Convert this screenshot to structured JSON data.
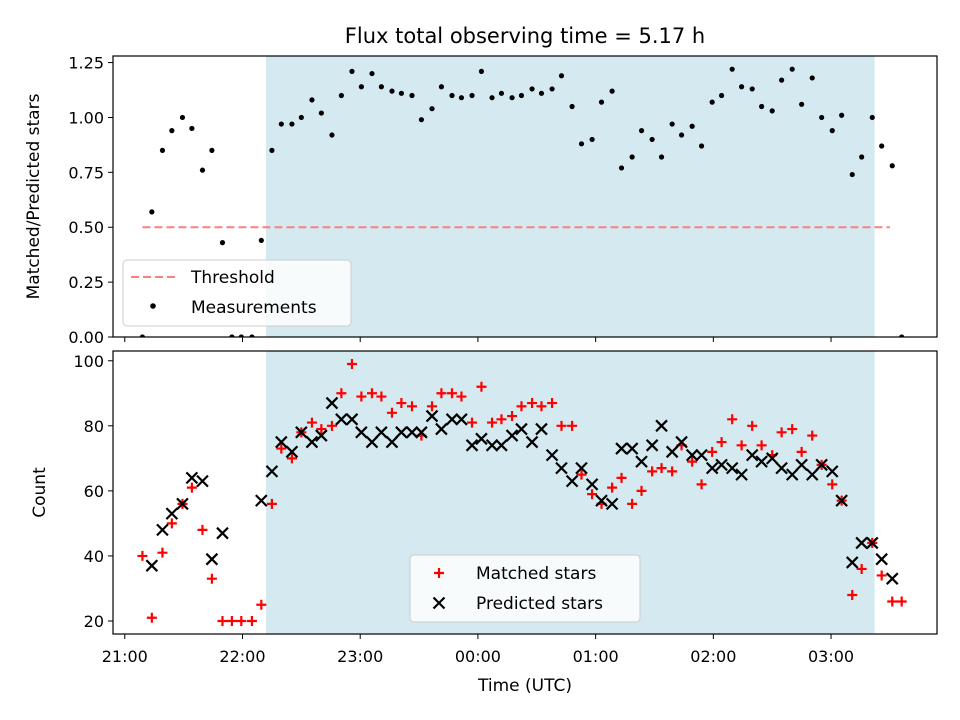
{
  "title": "Flux total observing time = 5.17 h",
  "xlabel": "Time (UTC)",
  "colors": {
    "observing_band": "#d4eaf0",
    "threshold": "#ff7f7f",
    "measurements": "#000000",
    "matched": "#ff0000",
    "predicted": "#000000"
  },
  "chart_data": [
    {
      "type": "scatter",
      "ylabel": "Matched/Predicted stars",
      "ylim": [
        0,
        1.28
      ],
      "yticks": [
        "0.00",
        "0.25",
        "0.50",
        "0.75",
        "1.00",
        "1.25"
      ],
      "xlim": [
        -0.1,
        6.9
      ],
      "xticks": [
        "21:00",
        "22:00",
        "23:00",
        "00:00",
        "01:00",
        "02:00",
        "03:00"
      ],
      "observing_band": {
        "start": 1.2,
        "end": 6.37
      },
      "threshold": {
        "name": "Threshold",
        "value": 0.5,
        "x_start": 0.15,
        "x_end": 6.5
      },
      "legend": {
        "position": "lower-left",
        "entries": [
          "Threshold",
          "Measurements"
        ]
      },
      "series": [
        {
          "name": "Measurements",
          "points": [
            [
              0.15,
              0.0
            ],
            [
              0.23,
              0.57
            ],
            [
              0.32,
              0.85
            ],
            [
              0.4,
              0.94
            ],
            [
              0.49,
              1.0
            ],
            [
              0.57,
              0.95
            ],
            [
              0.66,
              0.76
            ],
            [
              0.74,
              0.85
            ],
            [
              0.83,
              0.43
            ],
            [
              0.91,
              0.0
            ],
            [
              0.99,
              0.0
            ],
            [
              1.08,
              0.0
            ],
            [
              1.16,
              0.44
            ],
            [
              1.25,
              0.85
            ],
            [
              1.33,
              0.97
            ],
            [
              1.42,
              0.97
            ],
            [
              1.5,
              1.0
            ],
            [
              1.59,
              1.08
            ],
            [
              1.67,
              1.02
            ],
            [
              1.76,
              0.92
            ],
            [
              1.84,
              1.1
            ],
            [
              1.93,
              1.21
            ],
            [
              2.01,
              1.14
            ],
            [
              2.1,
              1.2
            ],
            [
              2.18,
              1.14
            ],
            [
              2.27,
              1.12
            ],
            [
              2.35,
              1.11
            ],
            [
              2.44,
              1.1
            ],
            [
              2.52,
              0.99
            ],
            [
              2.61,
              1.04
            ],
            [
              2.69,
              1.14
            ],
            [
              2.78,
              1.1
            ],
            [
              2.86,
              1.09
            ],
            [
              2.95,
              1.1
            ],
            [
              3.03,
              1.21
            ],
            [
              3.12,
              1.09
            ],
            [
              3.2,
              1.11
            ],
            [
              3.29,
              1.09
            ],
            [
              3.37,
              1.1
            ],
            [
              3.46,
              1.13
            ],
            [
              3.54,
              1.11
            ],
            [
              3.63,
              1.13
            ],
            [
              3.71,
              1.19
            ],
            [
              3.8,
              1.05
            ],
            [
              3.88,
              0.88
            ],
            [
              3.97,
              0.9
            ],
            [
              4.05,
              1.07
            ],
            [
              4.14,
              1.12
            ],
            [
              4.22,
              0.77
            ],
            [
              4.31,
              0.82
            ],
            [
              4.39,
              0.94
            ],
            [
              4.48,
              0.9
            ],
            [
              4.56,
              0.82
            ],
            [
              4.65,
              0.97
            ],
            [
              4.73,
              0.92
            ],
            [
              4.82,
              0.96
            ],
            [
              4.9,
              0.87
            ],
            [
              4.99,
              1.07
            ],
            [
              5.07,
              1.1
            ],
            [
              5.16,
              1.22
            ],
            [
              5.24,
              1.14
            ],
            [
              5.33,
              1.13
            ],
            [
              5.41,
              1.05
            ],
            [
              5.5,
              1.03
            ],
            [
              5.58,
              1.17
            ],
            [
              5.67,
              1.22
            ],
            [
              5.75,
              1.06
            ],
            [
              5.84,
              1.18
            ],
            [
              5.92,
              1.0
            ],
            [
              6.01,
              0.94
            ],
            [
              6.09,
              1.01
            ],
            [
              6.18,
              0.74
            ],
            [
              6.26,
              0.82
            ],
            [
              6.35,
              1.0
            ],
            [
              6.43,
              0.87
            ],
            [
              6.52,
              0.78
            ],
            [
              6.6,
              0.0
            ]
          ]
        }
      ]
    },
    {
      "type": "scatter",
      "ylabel": "Count",
      "ylim": [
        16,
        103
      ],
      "yticks": [
        "20",
        "40",
        "60",
        "80",
        "100"
      ],
      "xlim": [
        -0.1,
        6.9
      ],
      "xticks": [
        "21:00",
        "22:00",
        "23:00",
        "00:00",
        "01:00",
        "02:00",
        "03:00"
      ],
      "observing_band": {
        "start": 1.2,
        "end": 6.37
      },
      "legend": {
        "position": "lower-center",
        "entries": [
          "Matched stars",
          "Predicted stars"
        ]
      },
      "series": [
        {
          "name": "Matched stars",
          "marker": "+",
          "points": [
            [
              0.15,
              40
            ],
            [
              0.23,
              21
            ],
            [
              0.32,
              41
            ],
            [
              0.4,
              50
            ],
            [
              0.49,
              56
            ],
            [
              0.57,
              61
            ],
            [
              0.66,
              48
            ],
            [
              0.74,
              33
            ],
            [
              0.83,
              20
            ],
            [
              0.91,
              20
            ],
            [
              0.99,
              20
            ],
            [
              1.08,
              20
            ],
            [
              1.16,
              25
            ],
            [
              1.25,
              56
            ],
            [
              1.33,
              73
            ],
            [
              1.42,
              70
            ],
            [
              1.5,
              78
            ],
            [
              1.59,
              81
            ],
            [
              1.67,
              79
            ],
            [
              1.76,
              80
            ],
            [
              1.84,
              90
            ],
            [
              1.93,
              99
            ],
            [
              2.01,
              89
            ],
            [
              2.1,
              90
            ],
            [
              2.18,
              89
            ],
            [
              2.27,
              84
            ],
            [
              2.35,
              87
            ],
            [
              2.44,
              86
            ],
            [
              2.52,
              77
            ],
            [
              2.61,
              86
            ],
            [
              2.69,
              90
            ],
            [
              2.78,
              90
            ],
            [
              2.86,
              89
            ],
            [
              2.95,
              81
            ],
            [
              3.03,
              92
            ],
            [
              3.12,
              81
            ],
            [
              3.2,
              82
            ],
            [
              3.29,
              83
            ],
            [
              3.37,
              86
            ],
            [
              3.46,
              87
            ],
            [
              3.54,
              86
            ],
            [
              3.63,
              87
            ],
            [
              3.71,
              80
            ],
            [
              3.8,
              80
            ],
            [
              3.88,
              65
            ],
            [
              3.97,
              59
            ],
            [
              4.05,
              56
            ],
            [
              4.14,
              61
            ],
            [
              4.22,
              64
            ],
            [
              4.31,
              56
            ],
            [
              4.39,
              60
            ],
            [
              4.48,
              66
            ],
            [
              4.56,
              67
            ],
            [
              4.65,
              66
            ],
            [
              4.73,
              74
            ],
            [
              4.82,
              69
            ],
            [
              4.9,
              62
            ],
            [
              4.99,
              72
            ],
            [
              5.07,
              75
            ],
            [
              5.16,
              82
            ],
            [
              5.24,
              74
            ],
            [
              5.33,
              80
            ],
            [
              5.41,
              74
            ],
            [
              5.5,
              71
            ],
            [
              5.58,
              78
            ],
            [
              5.67,
              79
            ],
            [
              5.75,
              72
            ],
            [
              5.84,
              77
            ],
            [
              5.92,
              68
            ],
            [
              6.01,
              62
            ],
            [
              6.09,
              57
            ],
            [
              6.18,
              28
            ],
            [
              6.26,
              36
            ],
            [
              6.35,
              44
            ],
            [
              6.43,
              34
            ],
            [
              6.52,
              26
            ],
            [
              6.6,
              26
            ]
          ]
        },
        {
          "name": "Predicted stars",
          "marker": "x",
          "points": [
            [
              0.23,
              37
            ],
            [
              0.32,
              48
            ],
            [
              0.4,
              53
            ],
            [
              0.49,
              56
            ],
            [
              0.57,
              64
            ],
            [
              0.66,
              63
            ],
            [
              0.74,
              39
            ],
            [
              0.83,
              47
            ],
            [
              1.16,
              57
            ],
            [
              1.25,
              66
            ],
            [
              1.33,
              75
            ],
            [
              1.42,
              72
            ],
            [
              1.5,
              78
            ],
            [
              1.59,
              75
            ],
            [
              1.67,
              77
            ],
            [
              1.76,
              87
            ],
            [
              1.84,
              82
            ],
            [
              1.93,
              82
            ],
            [
              2.01,
              78
            ],
            [
              2.1,
              75
            ],
            [
              2.18,
              78
            ],
            [
              2.27,
              75
            ],
            [
              2.35,
              78
            ],
            [
              2.44,
              78
            ],
            [
              2.52,
              78
            ],
            [
              2.61,
              83
            ],
            [
              2.69,
              79
            ],
            [
              2.78,
              82
            ],
            [
              2.86,
              82
            ],
            [
              2.95,
              74
            ],
            [
              3.03,
              76
            ],
            [
              3.12,
              74
            ],
            [
              3.2,
              74
            ],
            [
              3.29,
              77
            ],
            [
              3.37,
              79
            ],
            [
              3.46,
              75
            ],
            [
              3.54,
              79
            ],
            [
              3.63,
              71
            ],
            [
              3.71,
              67
            ],
            [
              3.8,
              63
            ],
            [
              3.88,
              67
            ],
            [
              3.97,
              62
            ],
            [
              4.05,
              57
            ],
            [
              4.14,
              56
            ],
            [
              4.22,
              73
            ],
            [
              4.31,
              73
            ],
            [
              4.39,
              69
            ],
            [
              4.48,
              74
            ],
            [
              4.56,
              80
            ],
            [
              4.65,
              72
            ],
            [
              4.73,
              75
            ],
            [
              4.82,
              71
            ],
            [
              4.9,
              71
            ],
            [
              4.99,
              67
            ],
            [
              5.07,
              68
            ],
            [
              5.16,
              67
            ],
            [
              5.24,
              65
            ],
            [
              5.33,
              71
            ],
            [
              5.41,
              69
            ],
            [
              5.5,
              70
            ],
            [
              5.58,
              67
            ],
            [
              5.67,
              65
            ],
            [
              5.75,
              68
            ],
            [
              5.84,
              65
            ],
            [
              5.92,
              68
            ],
            [
              6.01,
              66
            ],
            [
              6.09,
              57
            ],
            [
              6.18,
              38
            ],
            [
              6.26,
              44
            ],
            [
              6.35,
              44
            ],
            [
              6.43,
              39
            ],
            [
              6.52,
              33
            ]
          ]
        }
      ]
    }
  ]
}
